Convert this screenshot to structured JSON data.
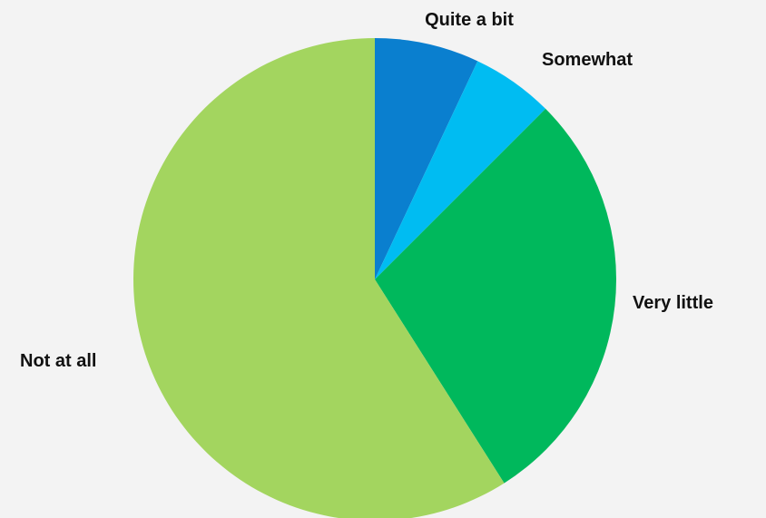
{
  "chart_data": {
    "type": "pie",
    "categories": [
      "Quite a bit",
      "Somewhat",
      "Very little",
      "Not at all"
    ],
    "values": [
      7,
      5.5,
      28.5,
      59
    ],
    "colors": [
      "#0a7fcf",
      "#00bcf2",
      "#00b85c",
      "#a3d55f"
    ],
    "legend": "none",
    "start": "top",
    "direction": "clockwise"
  }
}
